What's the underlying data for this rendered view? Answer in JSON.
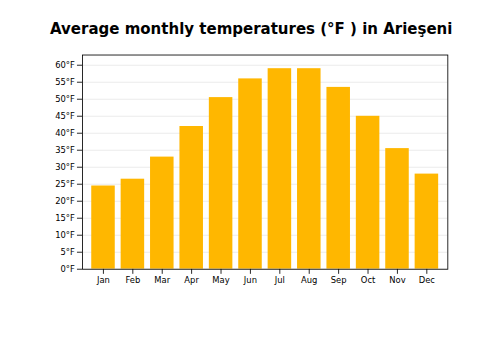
{
  "chart_data": {
    "type": "bar",
    "title": "Average monthly temperatures (°F ) in Arieşeni",
    "categories": [
      "Jan",
      "Feb",
      "Mar",
      "Apr",
      "May",
      "Jun",
      "Jul",
      "Aug",
      "Sep",
      "Oct",
      "Nov",
      "Dec"
    ],
    "values": [
      24.5,
      26.5,
      33.0,
      42.0,
      50.5,
      56.0,
      59.0,
      59.0,
      53.5,
      45.0,
      35.5,
      28.0
    ],
    "color": "#FFB700",
    "ylim": [
      0,
      63
    ],
    "yticks": [
      {
        "value": 0,
        "label": "0°F"
      },
      {
        "value": 5,
        "label": "5°F"
      },
      {
        "value": 10,
        "label": "10°F"
      },
      {
        "value": 15,
        "label": "15°F"
      },
      {
        "value": 20,
        "label": "20°F"
      },
      {
        "value": 25,
        "label": "25°F"
      },
      {
        "value": 30,
        "label": "30°F"
      },
      {
        "value": 35,
        "label": "35°F"
      },
      {
        "value": 40,
        "label": "40°F"
      },
      {
        "value": 45,
        "label": "45°F"
      },
      {
        "value": 50,
        "label": "50°F"
      },
      {
        "value": 55,
        "label": "55°F"
      },
      {
        "value": 60,
        "label": "60°F"
      }
    ],
    "grid": true
  }
}
